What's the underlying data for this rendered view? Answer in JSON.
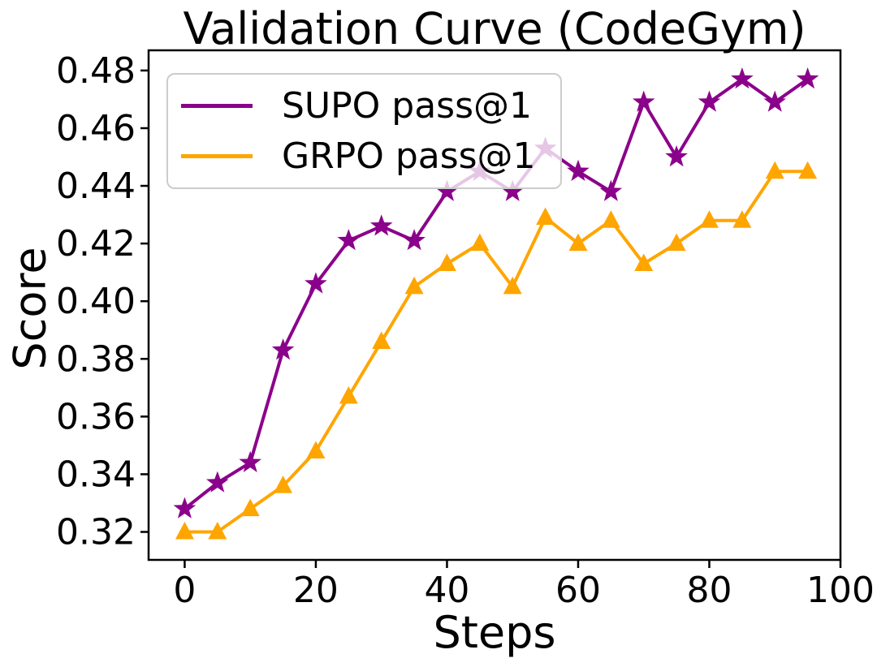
{
  "figure": {
    "title": "Validation Curve (CodeGym)",
    "y_axis_label": "Score",
    "x_axis_label": "Steps",
    "background_color": "#ffffff",
    "axis_color": "#000000"
  },
  "legend": {
    "items": [
      {
        "label": "SUPO pass@1",
        "color": "#8B008B"
      },
      {
        "label": "GRPO pass@1",
        "color": "#FFA500"
      }
    ]
  },
  "chart_data": {
    "type": "line",
    "title": "Validation Curve (CodeGym)",
    "xlabel": "Steps",
    "ylabel": "Score",
    "x": [
      0,
      5,
      10,
      15,
      20,
      25,
      30,
      35,
      40,
      45,
      50,
      55,
      60,
      65,
      70,
      75,
      80,
      85,
      90,
      95
    ],
    "series": [
      {
        "name": "SUPO pass@1",
        "color": "#8B008B",
        "marker": "star",
        "values": [
          0.328,
          0.337,
          0.344,
          0.383,
          0.406,
          0.421,
          0.426,
          0.421,
          0.438,
          0.445,
          0.438,
          0.453,
          0.445,
          0.438,
          0.469,
          0.45,
          0.469,
          0.477,
          0.469,
          0.477
        ]
      },
      {
        "name": "GRPO pass@1",
        "color": "#FFA500",
        "marker": "triangle-up",
        "values": [
          0.32,
          0.32,
          0.328,
          0.336,
          0.348,
          0.367,
          0.386,
          0.405,
          0.413,
          0.42,
          0.405,
          0.429,
          0.42,
          0.428,
          0.413,
          0.42,
          0.428,
          0.428,
          0.445,
          0.445
        ]
      }
    ],
    "xlim": [
      -5.5,
      100
    ],
    "ylim": [
      0.3103,
      0.487
    ],
    "xticks": [
      0,
      20,
      40,
      60,
      80,
      100
    ],
    "yticks": [
      0.32,
      0.34,
      0.36,
      0.38,
      0.4,
      0.42,
      0.44,
      0.46,
      0.48
    ],
    "grid": false,
    "legend_position": "upper left"
  }
}
